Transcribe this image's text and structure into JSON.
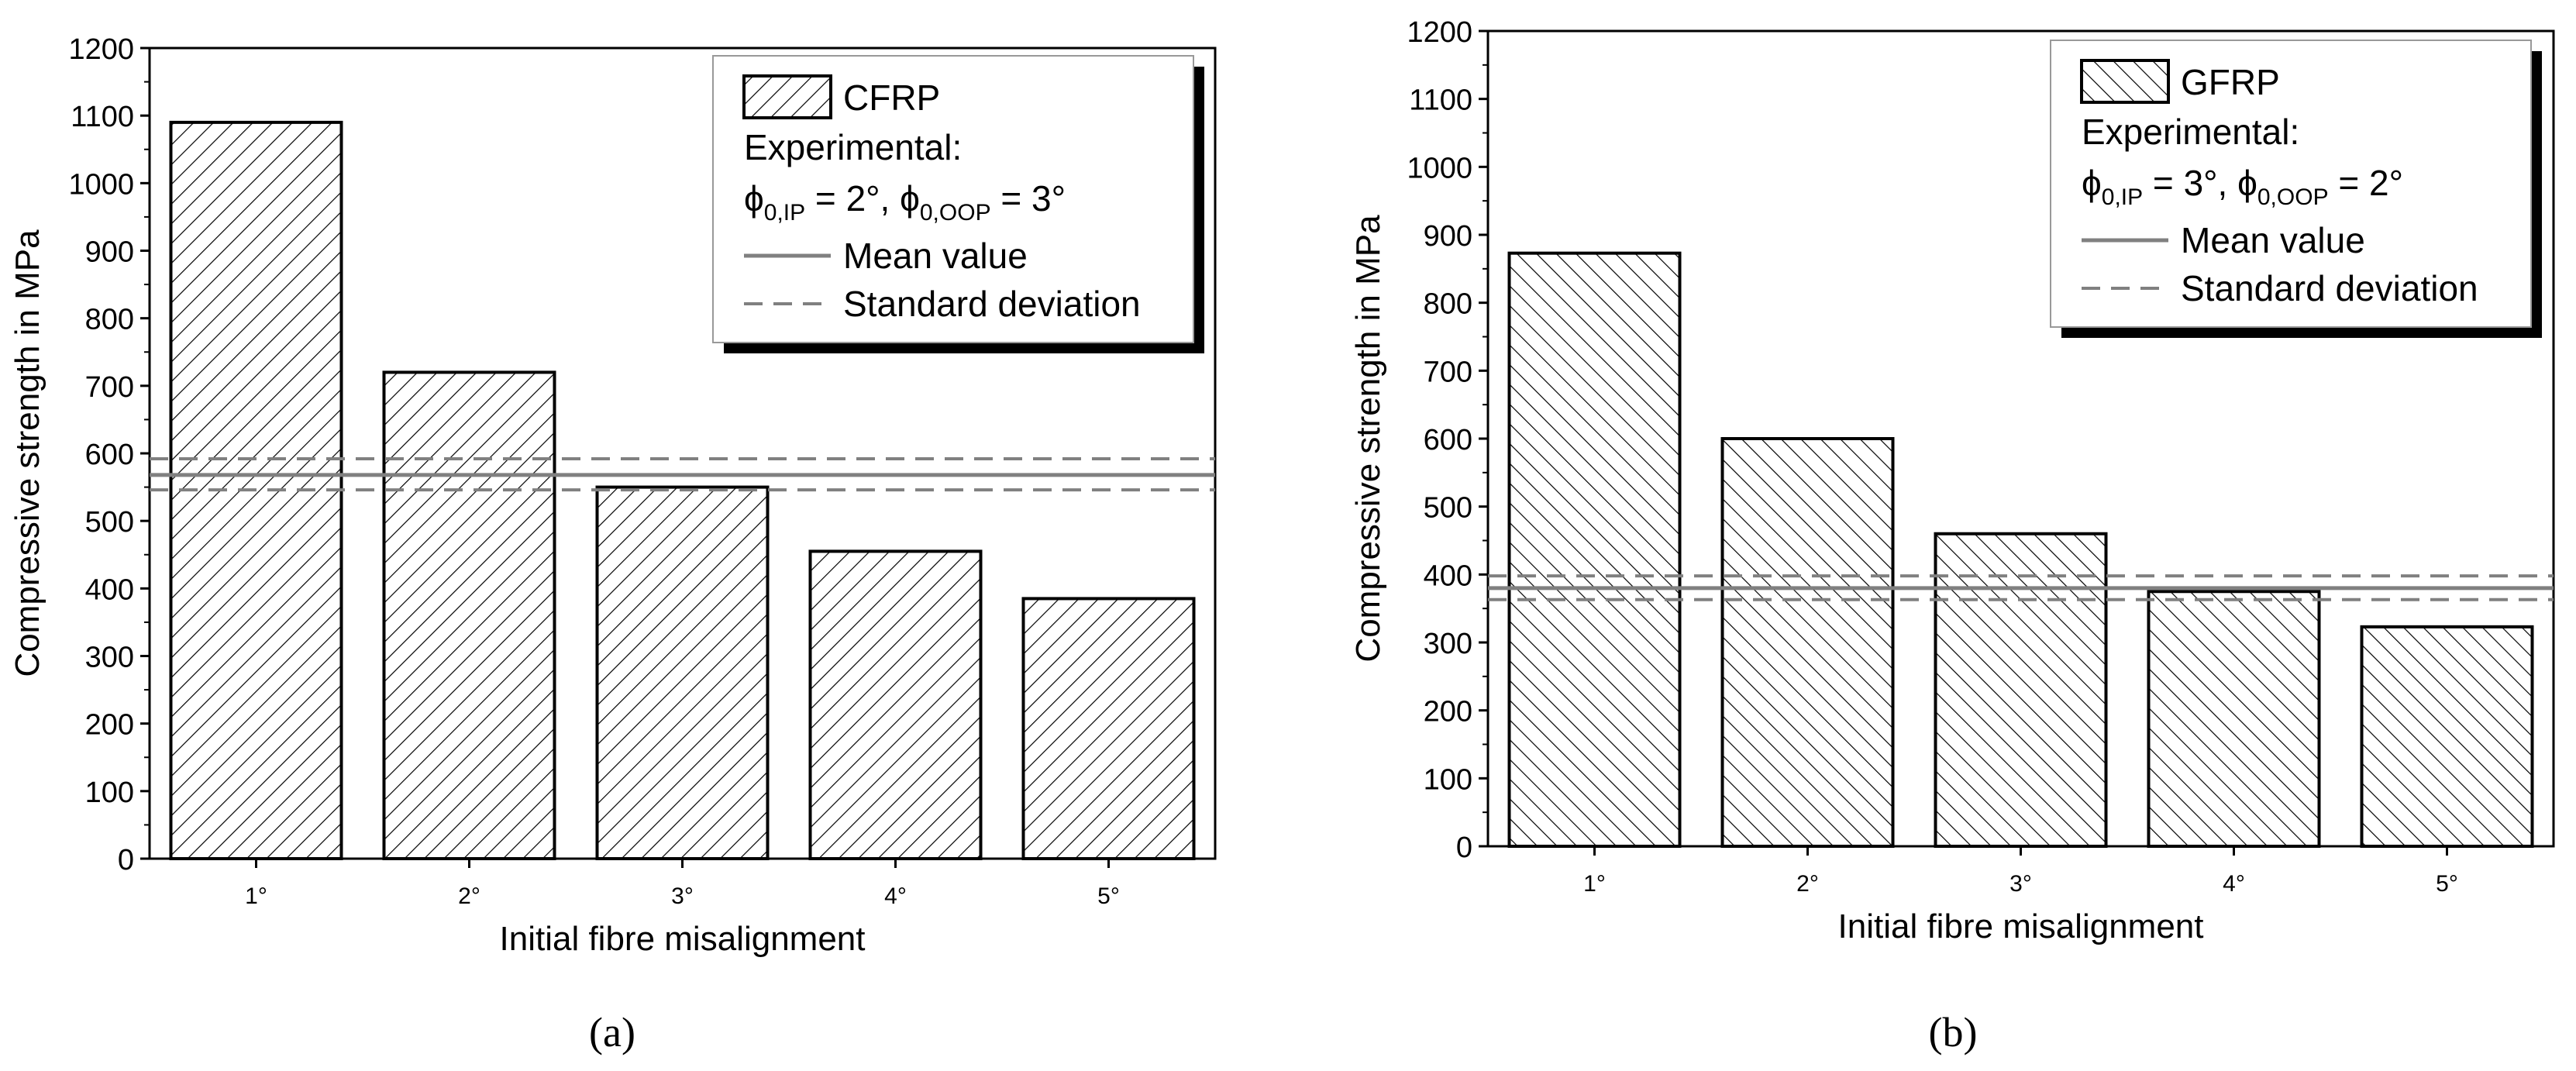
{
  "chart_data": [
    {
      "type": "bar",
      "panel_label": "(a)",
      "categories": [
        "1°",
        "2°",
        "3°",
        "4°",
        "5°"
      ],
      "series": [
        {
          "name": "CFRP",
          "values": [
            1090,
            720,
            550,
            455,
            385
          ],
          "hatch": "forward-diagonal"
        }
      ],
      "reference_lines": {
        "mean": 568,
        "std_upper": 592,
        "std_lower": 546
      },
      "xlabel": "Initial fibre misalignment",
      "ylabel": "Compressive strength in MPa",
      "ylim": [
        0,
        1200
      ],
      "yticks": [
        0,
        100,
        200,
        300,
        400,
        500,
        600,
        700,
        800,
        900,
        1000,
        1100,
        1200
      ],
      "legend": {
        "position": "top-right",
        "series_label": "CFRP",
        "experimental_label": "Experimental:",
        "phi_ip_sub": "0,IP",
        "phi_ip_value": " = 2°, ",
        "phi_oop_sub": "0,OOP",
        "phi_oop_value": " = 3°",
        "mean_label": "Mean value",
        "std_label": "Standard deviation"
      },
      "colors": {
        "bar_fill": "#ffffff",
        "bar_edge": "#000000",
        "ref_line": "#808080"
      }
    },
    {
      "type": "bar",
      "panel_label": "(b)",
      "categories": [
        "1°",
        "2°",
        "3°",
        "4°",
        "5°"
      ],
      "series": [
        {
          "name": "GFRP",
          "values": [
            873,
            600,
            460,
            375,
            323
          ],
          "hatch": "backward-diagonal"
        }
      ],
      "reference_lines": {
        "mean": 380,
        "std_upper": 398,
        "std_lower": 363
      },
      "xlabel": "Initial fibre misalignment",
      "ylabel": "Compressive strength in MPa",
      "ylim": [
        0,
        1200
      ],
      "yticks": [
        0,
        100,
        200,
        300,
        400,
        500,
        600,
        700,
        800,
        900,
        1000,
        1100,
        1200
      ],
      "legend": {
        "position": "top-right",
        "series_label": "GFRP",
        "experimental_label": "Experimental:",
        "phi_ip_sub": "0,IP",
        "phi_ip_value": " = 3°, ",
        "phi_oop_sub": "0,OOP",
        "phi_oop_value": " = 2°",
        "mean_label": "Mean value",
        "std_label": "Standard deviation"
      },
      "colors": {
        "bar_fill": "#ffffff",
        "bar_edge": "#000000",
        "ref_line": "#808080"
      }
    }
  ]
}
